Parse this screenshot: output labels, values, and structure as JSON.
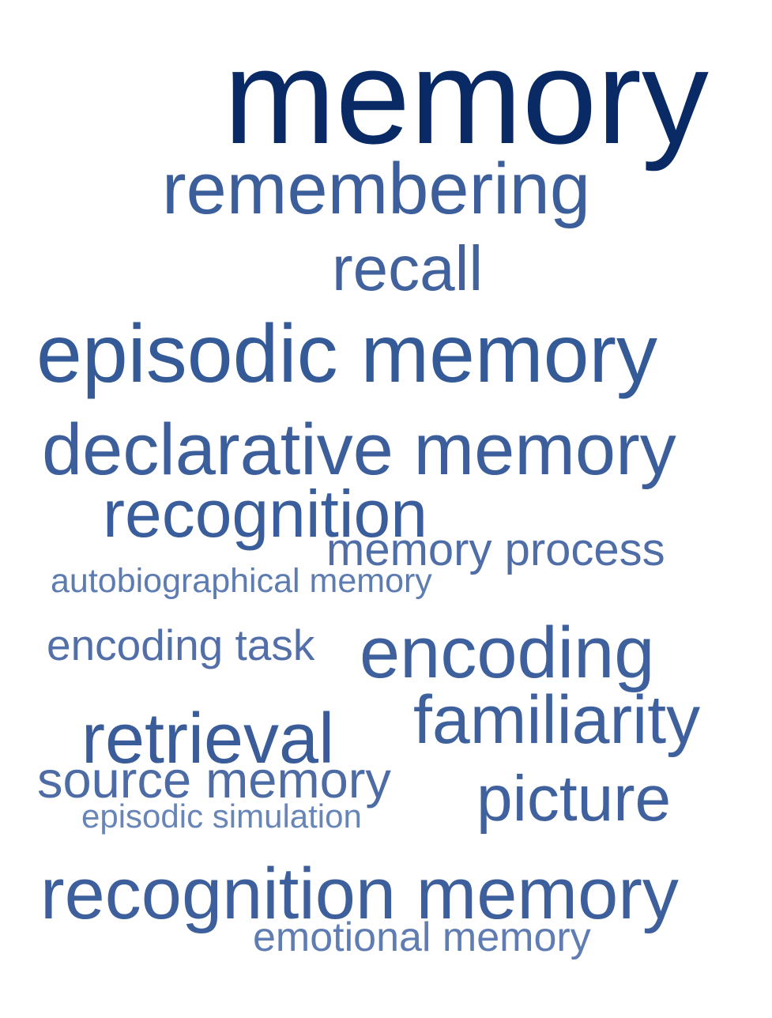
{
  "word_cloud": {
    "words": [
      {
        "id": "memory",
        "text": "memory",
        "color": "#0a2a66"
      },
      {
        "id": "remembering",
        "text": "remembering",
        "color": "#3c5f9c"
      },
      {
        "id": "recall",
        "text": "recall",
        "color": "#41629d"
      },
      {
        "id": "episodic_memory",
        "text": "episodic memory",
        "color": "#345a98"
      },
      {
        "id": "declarative_memory",
        "text": "declarative memory",
        "color": "#3c5f9c"
      },
      {
        "id": "recognition",
        "text": "recognition",
        "color": "#3a5e9b"
      },
      {
        "id": "memory_process",
        "text": "memory process",
        "color": "#4f6ea7"
      },
      {
        "id": "autobiographical_memory",
        "text": "autobiographical memory",
        "color": "#5d7cb2"
      },
      {
        "id": "encoding_task",
        "text": "encoding task",
        "color": "#526fa9"
      },
      {
        "id": "encoding",
        "text": "encoding",
        "color": "#3e609c"
      },
      {
        "id": "familiarity",
        "text": "familiarity",
        "color": "#3e609c"
      },
      {
        "id": "retrieval",
        "text": "retrieval",
        "color": "#3a5d9a"
      },
      {
        "id": "source_memory",
        "text": "source memory",
        "color": "#4d6ca5"
      },
      {
        "id": "picture",
        "text": "picture",
        "color": "#3f619d"
      },
      {
        "id": "episodic_simulation",
        "text": "episodic simulation",
        "color": "#6885b8"
      },
      {
        "id": "recognition_memory",
        "text": "recognition memory",
        "color": "#3d5f9c"
      },
      {
        "id": "emotional_memory",
        "text": "emotional memory",
        "color": "#5f7db3"
      }
    ]
  }
}
